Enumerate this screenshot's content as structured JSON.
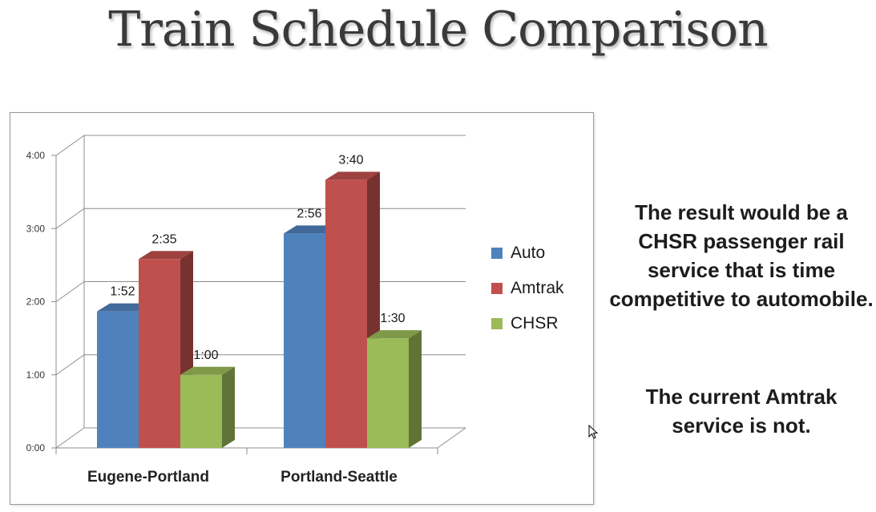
{
  "slide": {
    "title": "Train Schedule Comparison",
    "paragraphs": [
      "The result would be a CHSR passenger rail service that is time competitive to automobile.",
      "The current Amtrak service is not."
    ]
  },
  "chart_data": {
    "type": "bar",
    "style": "3d-clustered",
    "categories": [
      "Eugene-Portland",
      "Portland-Seattle"
    ],
    "series": [
      {
        "name": "Auto",
        "values": [
          112,
          176
        ],
        "labels": [
          "1:52",
          "2:56"
        ],
        "color": "#4f81bd"
      },
      {
        "name": "Amtrak",
        "values": [
          155,
          220
        ],
        "labels": [
          "2:35",
          "3:40"
        ],
        "color": "#c0504d"
      },
      {
        "name": "CHSR",
        "values": [
          60,
          90
        ],
        "labels": [
          "1:00",
          "1:30"
        ],
        "color": "#9bbb59"
      }
    ],
    "value_unit": "minutes",
    "ylim": [
      0,
      240
    ],
    "yticks": [
      0,
      60,
      120,
      180,
      240
    ],
    "ytick_labels": [
      "0:00",
      "1:00",
      "2:00",
      "3:00",
      "4:00"
    ],
    "grid": true,
    "legend": "right",
    "title": "",
    "xlabel": "",
    "ylabel": ""
  }
}
